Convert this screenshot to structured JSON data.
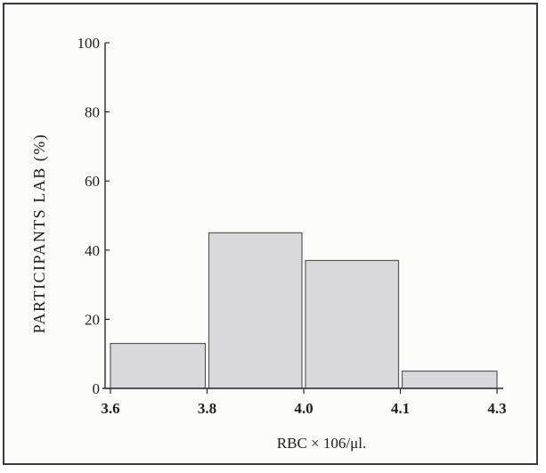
{
  "chart_data": {
    "type": "bar",
    "bins": [
      {
        "from": 3.6,
        "to": 3.8,
        "value": 13
      },
      {
        "from": 3.8,
        "to": 4.0,
        "value": 45
      },
      {
        "from": 4.0,
        "to": 4.1,
        "value": 37
      },
      {
        "from": 4.1,
        "to": 4.3,
        "value": 5
      }
    ],
    "x_ticks": [
      "3.6",
      "3.8",
      "4.0",
      "4.1",
      "4.3"
    ],
    "y_ticks": [
      0,
      20,
      40,
      60,
      80,
      100
    ],
    "ylim": [
      0,
      100
    ],
    "xlabel": "RBC × 106/μl.",
    "ylabel": "PARTICIPANTS LAB (%)",
    "colors": {
      "bar_fill": "#d9d9db",
      "bar_stroke": "#5a5a5a",
      "axis": "#2a2a2a"
    }
  }
}
